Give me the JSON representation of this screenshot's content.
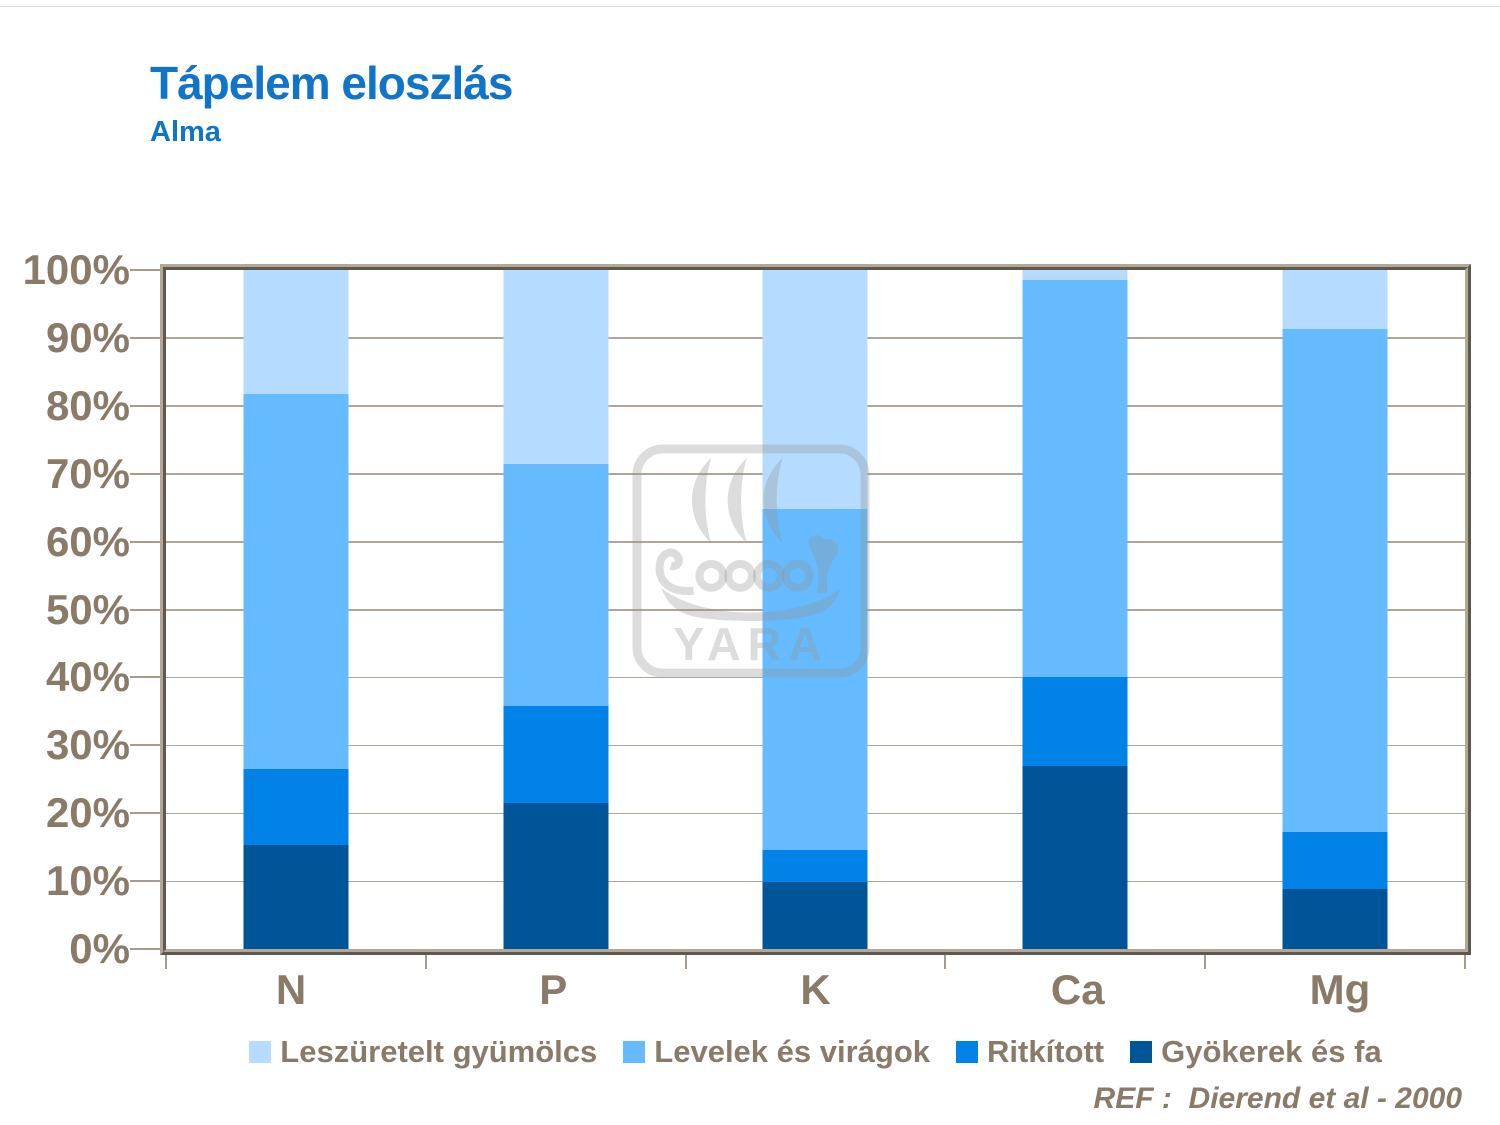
{
  "slide": {
    "title": "Tápelem eloszlás",
    "subtitle": "Alma",
    "reference": "REF :  Dierend et al - 2000"
  },
  "watermark": {
    "brand": "YARA"
  },
  "colors": {
    "title_text": "#1074C8",
    "axis_text": "#8A7A68",
    "gridline": "#AFA699",
    "plot_border": "#B3A795",
    "background": "#FFFFFF",
    "watermark_gray": "#E3E3E3"
  },
  "chart_data": {
    "type": "bar",
    "stacked": true,
    "title": "Tápelem eloszlás",
    "subtitle": "Alma",
    "unit": "%",
    "categories": [
      "N",
      "P",
      "K",
      "Ca",
      "Mg"
    ],
    "series": [
      {
        "name": "Gyökerek és fa",
        "color": "#005598",
        "values": [
          15.3,
          21.5,
          9.8,
          27.0,
          8.8
        ]
      },
      {
        "name": "Ritkított",
        "color": "#0082E6",
        "values": [
          11.2,
          14.3,
          4.8,
          13.0,
          8.5
        ]
      },
      {
        "name": "Levelek és virágok",
        "color": "#66BBFE",
        "values": [
          55.3,
          35.7,
          50.2,
          58.5,
          74.0
        ]
      },
      {
        "name": "Leszüretelt gyümölcs",
        "color": "#B5DCFE",
        "values": [
          18.2,
          28.5,
          35.2,
          1.5,
          8.7
        ]
      }
    ],
    "xlabel": "",
    "ylabel": "",
    "ylim": [
      0,
      100
    ],
    "yticks": [
      0,
      10,
      20,
      30,
      40,
      50,
      60,
      70,
      80,
      90,
      100
    ],
    "ytick_format": "{v}%",
    "grid": "horizontal",
    "legend_position": "bottom",
    "legend_order": "reversed"
  }
}
